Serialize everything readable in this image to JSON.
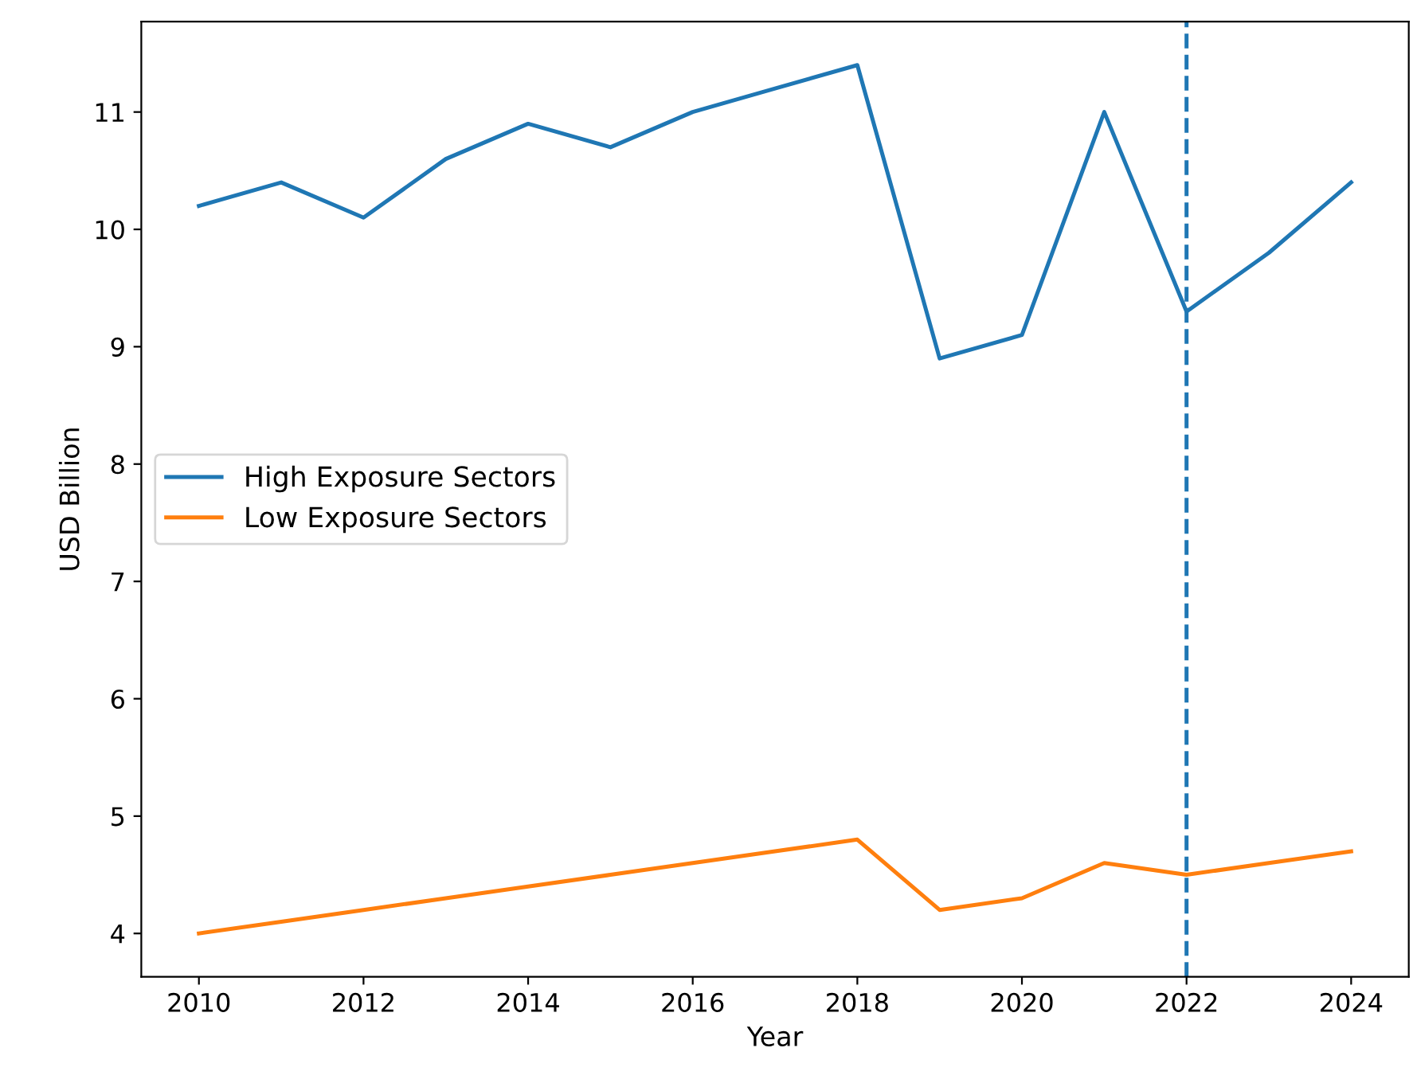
{
  "chart_data": {
    "type": "line",
    "xlabel": "Year",
    "ylabel": "USD Billion",
    "x": [
      2010,
      2011,
      2012,
      2013,
      2014,
      2015,
      2016,
      2017,
      2018,
      2019,
      2020,
      2021,
      2022,
      2023,
      2024
    ],
    "series": [
      {
        "name": "High Exposure Sectors",
        "color": "#1f77b4",
        "values": [
          10.2,
          10.4,
          10.1,
          10.6,
          10.9,
          10.7,
          11.0,
          11.2,
          11.4,
          8.9,
          9.1,
          11.0,
          9.3,
          9.8,
          10.4
        ]
      },
      {
        "name": "Low Exposure Sectors",
        "color": "#ff7f0e",
        "values": [
          4.0,
          4.1,
          4.2,
          4.3,
          4.4,
          4.5,
          4.6,
          4.7,
          4.8,
          4.2,
          4.3,
          4.6,
          4.5,
          4.6,
          4.7
        ]
      }
    ],
    "xlim": [
      2009.3,
      2024.7
    ],
    "ylim": [
      3.63,
      11.77
    ],
    "xticks": [
      2010,
      2012,
      2014,
      2016,
      2018,
      2020,
      2022,
      2024
    ],
    "yticks": [
      4,
      5,
      6,
      7,
      8,
      9,
      10,
      11
    ],
    "ref_lines": [
      {
        "axis": "x",
        "value": 2022,
        "color": "#1f77b4",
        "line_style": "dashed"
      }
    ],
    "legend": "center left",
    "grid": false,
    "marker": "none",
    "line_style": "solid"
  }
}
